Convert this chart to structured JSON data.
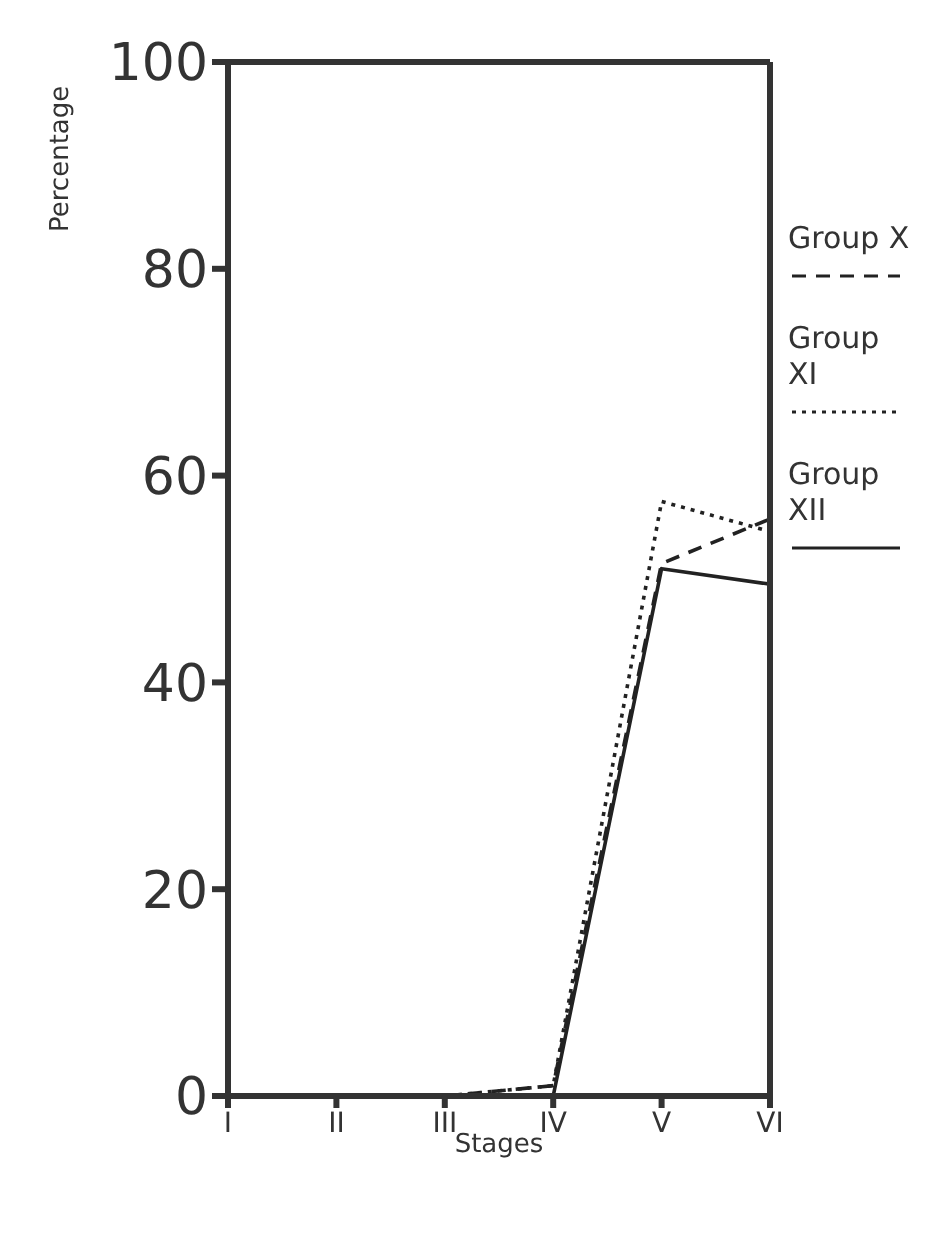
{
  "chart_data": {
    "type": "line",
    "xlabel": "Stages",
    "ylabel": "Percentage",
    "categories": [
      "I",
      "II",
      "III",
      "IV",
      "V",
      "VI"
    ],
    "series": [
      {
        "name": "Group X",
        "color": "#222222",
        "line_style": "dashed",
        "values": [
          0,
          0,
          0,
          1,
          51.5,
          55.8
        ]
      },
      {
        "name": "Group XI",
        "color": "#222222",
        "line_style": "dotted",
        "values": [
          0,
          0,
          0,
          1,
          57.5,
          54.6
        ]
      },
      {
        "name": "Group XII",
        "color": "#222222",
        "line_style": "solid",
        "values": [
          0,
          0,
          0,
          0,
          51,
          49.5
        ]
      }
    ],
    "ylim": [
      0,
      100
    ],
    "yticks": [
      0,
      20,
      40,
      60,
      80,
      100
    ],
    "grid": false,
    "legend": "top right",
    "marker": "none"
  }
}
